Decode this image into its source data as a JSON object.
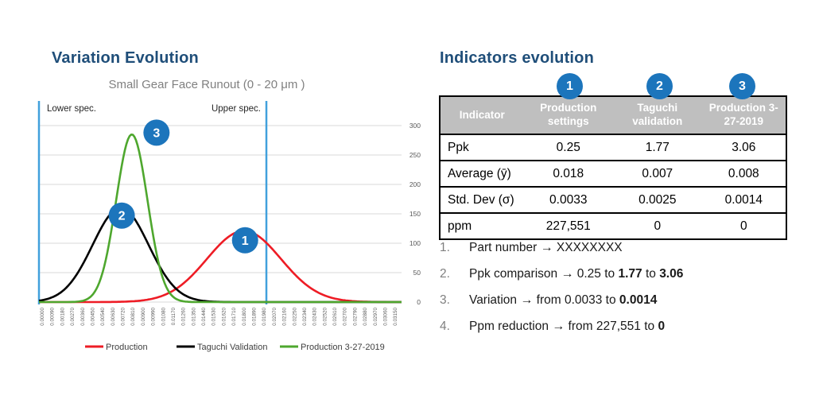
{
  "left_panel": {
    "title": "Variation Evolution"
  },
  "right_panel": {
    "title": "Indicators evolution"
  },
  "chart_data": {
    "type": "line",
    "title": "Small Gear Face Runout (0 - 20 μm )",
    "x_axis": {
      "min": 0,
      "max": 0.0324,
      "tick_step": 0.0009
    },
    "x_ticks": [
      "0.00000",
      "0.00090",
      "0.00180",
      "0.00270",
      "0.00360",
      "0.00450",
      "0.00540",
      "0.00630",
      "0.00720",
      "0.00810",
      "0.00900",
      "0.00990",
      "0.01080",
      "0.01170",
      "0.01260",
      "0.01350",
      "0.01440",
      "0.01530",
      "0.01620",
      "0.01710",
      "0.01800",
      "0.01890",
      "0.01980",
      "0.02070",
      "0.02160",
      "0.02250",
      "0.02340",
      "0.02430",
      "0.02520",
      "0.02610",
      "0.02700",
      "0.02790",
      "0.02880",
      "0.02970",
      "0.03060",
      "0.03150"
    ],
    "y_ticks": [
      0,
      50,
      100,
      150,
      200,
      250,
      300
    ],
    "y_axis_side": "right",
    "grid": true,
    "series": [
      {
        "name": "Production",
        "color": "#EE1C25",
        "mean": 0.018,
        "sigma": 0.0033,
        "peak": 121
      },
      {
        "name": "Taguchi Validation",
        "color": "#000000",
        "mean": 0.007,
        "sigma": 0.0025,
        "peak": 160
      },
      {
        "name": "Production 3-27-2019",
        "color": "#4EA72E",
        "mean": 0.008,
        "sigma": 0.0014,
        "peak": 285
      }
    ],
    "spec_lines": {
      "color": "#41A0DC",
      "lower": {
        "label": "Lower spec.",
        "value": 0.0
      },
      "upper": {
        "label": "Upper spec.",
        "value": 0.02
      }
    },
    "markers": [
      {
        "label": "1",
        "x": 0.0181,
        "y": 105
      },
      {
        "label": "2",
        "x": 0.0071,
        "y": 147
      },
      {
        "label": "3",
        "x": 0.0102,
        "y": 288
      }
    ],
    "legend_position": "bottom"
  },
  "table": {
    "badges": [
      "1",
      "2",
      "3"
    ],
    "headers": [
      "Indicator",
      "Production settings",
      "Taguchi validation",
      "Production 3-27-2019"
    ],
    "rows": [
      [
        "Ppk",
        "0.25",
        "1.77",
        "3.06"
      ],
      [
        "Average (ȳ)",
        "0.018",
        "0.007",
        "0.008"
      ],
      [
        "Std. Dev (σ)",
        "0.0033",
        "0.0025",
        "0.0014"
      ],
      [
        "ppm",
        "227,551",
        "0",
        "0"
      ]
    ]
  },
  "notes": [
    {
      "num": "1.",
      "segments": [
        {
          "t": "Part number "
        },
        {
          "t": "→",
          "b": true,
          "arrow": true
        },
        {
          "t": " XXXXXXXX"
        }
      ]
    },
    {
      "num": "2.",
      "segments": [
        {
          "t": "Ppk comparison "
        },
        {
          "t": "→",
          "b": true,
          "arrow": true
        },
        {
          "t": " 0.25 to "
        },
        {
          "t": "1.77",
          "b": true
        },
        {
          "t": " to "
        },
        {
          "t": "3.06",
          "b": true
        }
      ]
    },
    {
      "num": "3.",
      "segments": [
        {
          "t": "Variation "
        },
        {
          "t": "→",
          "b": true,
          "arrow": true
        },
        {
          "t": " from 0.0033 to "
        },
        {
          "t": "0.0014",
          "b": true
        }
      ]
    },
    {
      "num": "4.",
      "segments": [
        {
          "t": "Ppm reduction "
        },
        {
          "t": "→",
          "b": true,
          "arrow": true
        },
        {
          "t": " from 227,551 to "
        },
        {
          "t": "0",
          "b": true
        }
      ]
    }
  ],
  "colors": {
    "title_navy": "#1F4E79",
    "badge_blue": "#1C75BC",
    "spec_blue": "#41A0DC",
    "gridline": "#D9D9D9",
    "tick_text": "#595959",
    "header_bg": "#BFBFBF",
    "note_number_gray": "#7F7F7F"
  }
}
